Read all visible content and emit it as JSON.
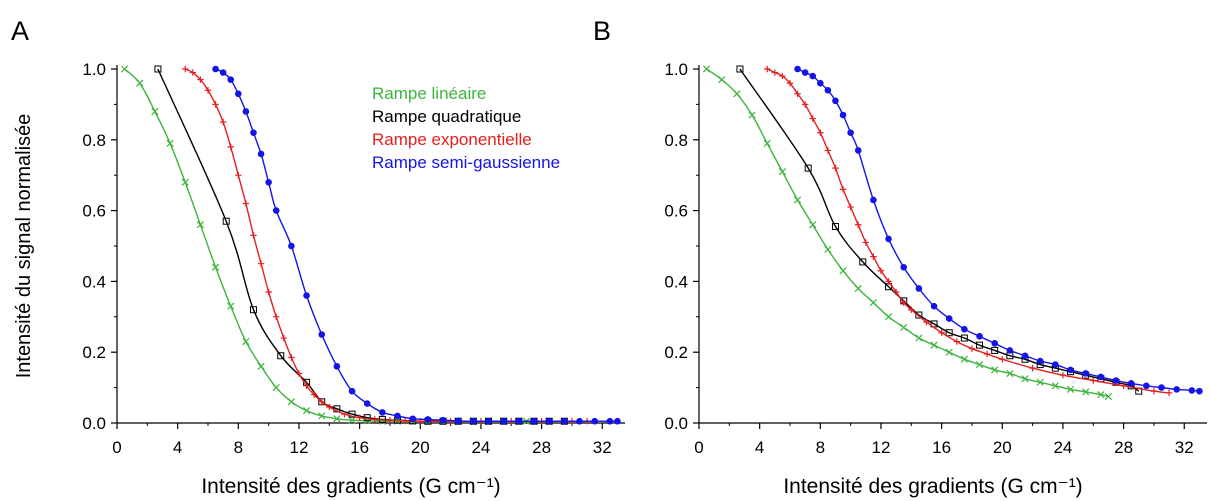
{
  "chart_data": [
    {
      "panel_label": "A",
      "type": "line",
      "xlabel": "Intensité des gradients (G cm⁻¹)",
      "ylabel": "Intensité du signal normalisée",
      "xlim": [
        0,
        33.5
      ],
      "ylim": [
        0,
        1.0
      ],
      "x_ticks": [
        0,
        4,
        8,
        12,
        16,
        20,
        24,
        28,
        32
      ],
      "x_tick_labels": [
        "0",
        "4",
        "8",
        "12",
        "16",
        "20",
        "24",
        "28",
        "32"
      ],
      "y_ticks": [
        0,
        0.2,
        0.4,
        0.6,
        0.8,
        1.0
      ],
      "y_tick_labels": [
        "0.0",
        "0.2",
        "0.4",
        "0.6",
        "0.8",
        "1.0"
      ],
      "grid": false,
      "legend_position": "top-center",
      "series": [
        {
          "name": "Rampe linéaire",
          "color": "#3cb43c",
          "marker": "x",
          "x": [
            0.5,
            1.5,
            2.5,
            3.5,
            4.5,
            5.5,
            6.5,
            7.5,
            8.5,
            9.5,
            10.5,
            11.5,
            12.5,
            13.5,
            14.5,
            15.5,
            16.5,
            17.5,
            18.5,
            19.5,
            20.5,
            21.5,
            22.5,
            23.5,
            24.5,
            25.5,
            26.5,
            27.0
          ],
          "y": [
            1.0,
            0.96,
            0.88,
            0.79,
            0.68,
            0.56,
            0.44,
            0.33,
            0.23,
            0.16,
            0.1,
            0.06,
            0.035,
            0.02,
            0.012,
            0.008,
            0.006,
            0.005,
            0.005,
            0.005,
            0.005,
            0.005,
            0.005,
            0.005,
            0.005,
            0.005,
            0.005,
            0.005
          ]
        },
        {
          "name": "Rampe quadratique",
          "color": "#000000",
          "marker": "square",
          "x": [
            2.7,
            7.2,
            9.0,
            10.8,
            12.5,
            13.5,
            14.5,
            15.5,
            16.5,
            17.5,
            18.5,
            19.5,
            20.5,
            21.5,
            22.5,
            23.5,
            24.5,
            25.5,
            26.5,
            27.5,
            28.5,
            29.5
          ],
          "y": [
            1.0,
            0.57,
            0.32,
            0.19,
            0.115,
            0.06,
            0.04,
            0.025,
            0.015,
            0.01,
            0.008,
            0.006,
            0.005,
            0.005,
            0.005,
            0.005,
            0.005,
            0.005,
            0.005,
            0.005,
            0.005,
            0.005
          ]
        },
        {
          "name": "Rampe exponentielle",
          "color": "#e61e1e",
          "marker": "plus",
          "x": [
            4.5,
            5.0,
            5.5,
            6.0,
            6.5,
            7.0,
            7.5,
            8.0,
            8.5,
            9.0,
            9.5,
            10.0,
            10.5,
            11.0,
            11.5,
            12.0,
            12.5,
            13.0,
            13.5,
            14.0,
            15.0,
            16.0,
            17.0,
            18.0,
            19.0,
            20.0,
            22.0,
            24.0,
            26.0,
            28.0,
            30.0,
            31.0
          ],
          "y": [
            1.0,
            0.99,
            0.97,
            0.94,
            0.9,
            0.85,
            0.78,
            0.7,
            0.62,
            0.53,
            0.45,
            0.37,
            0.3,
            0.24,
            0.185,
            0.14,
            0.105,
            0.08,
            0.06,
            0.045,
            0.025,
            0.015,
            0.01,
            0.008,
            0.006,
            0.005,
            0.005,
            0.005,
            0.005,
            0.005,
            0.005,
            0.005
          ]
        },
        {
          "name": "Rampe semi-gaussienne",
          "color": "#1414e6",
          "marker": "circle",
          "x": [
            6.5,
            7.0,
            7.5,
            8.0,
            8.5,
            9.0,
            9.5,
            10.0,
            10.5,
            11.5,
            12.5,
            13.5,
            14.5,
            15.5,
            16.5,
            17.5,
            18.5,
            19.5,
            20.5,
            21.5,
            22.5,
            23.5,
            24.5,
            25.5,
            26.5,
            27.5,
            28.5,
            29.5,
            30.5,
            31.5,
            32.5,
            33.0
          ],
          "y": [
            1.0,
            0.99,
            0.97,
            0.93,
            0.88,
            0.82,
            0.76,
            0.68,
            0.6,
            0.5,
            0.36,
            0.25,
            0.16,
            0.09,
            0.055,
            0.03,
            0.02,
            0.012,
            0.01,
            0.008,
            0.006,
            0.005,
            0.005,
            0.005,
            0.005,
            0.005,
            0.005,
            0.005,
            0.005,
            0.005,
            0.005,
            0.005
          ]
        }
      ]
    },
    {
      "panel_label": "B",
      "type": "line",
      "xlabel": "Intensité des gradients (G cm⁻¹)",
      "ylabel": "",
      "xlim": [
        0,
        33.5
      ],
      "ylim": [
        0,
        1.0
      ],
      "x_ticks": [
        0,
        4,
        8,
        12,
        16,
        20,
        24,
        28,
        32
      ],
      "x_tick_labels": [
        "0",
        "4",
        "8",
        "12",
        "16",
        "20",
        "24",
        "28",
        "32"
      ],
      "y_ticks": [
        0,
        0.2,
        0.4,
        0.6,
        0.8,
        1.0
      ],
      "y_tick_labels": [
        "0.0",
        "0.2",
        "0.4",
        "0.6",
        "0.8",
        "1.0"
      ],
      "grid": false,
      "series": [
        {
          "name": "Rampe linéaire",
          "color": "#3cb43c",
          "marker": "x",
          "x": [
            0.5,
            1.5,
            2.5,
            3.5,
            4.5,
            5.5,
            6.5,
            7.5,
            8.5,
            9.5,
            10.5,
            11.5,
            12.5,
            13.5,
            14.5,
            15.5,
            16.5,
            17.5,
            18.5,
            19.5,
            20.5,
            21.5,
            22.5,
            23.5,
            24.5,
            25.5,
            26.5,
            27.0
          ],
          "y": [
            1.0,
            0.97,
            0.93,
            0.87,
            0.79,
            0.71,
            0.63,
            0.56,
            0.49,
            0.43,
            0.38,
            0.34,
            0.3,
            0.27,
            0.24,
            0.22,
            0.2,
            0.18,
            0.165,
            0.15,
            0.14,
            0.125,
            0.115,
            0.105,
            0.095,
            0.088,
            0.08,
            0.075
          ]
        },
        {
          "name": "Rampe quadratique",
          "color": "#000000",
          "marker": "square",
          "x": [
            2.7,
            7.2,
            9.0,
            10.8,
            12.5,
            13.5,
            14.5,
            15.5,
            16.5,
            17.5,
            18.5,
            19.5,
            20.5,
            21.5,
            22.5,
            23.5,
            24.5,
            25.5,
            26.5,
            27.5,
            28.5,
            29.0
          ],
          "y": [
            1.0,
            0.72,
            0.555,
            0.455,
            0.385,
            0.345,
            0.305,
            0.28,
            0.255,
            0.24,
            0.22,
            0.205,
            0.19,
            0.18,
            0.165,
            0.155,
            0.145,
            0.135,
            0.125,
            0.115,
            0.105,
            0.09
          ]
        },
        {
          "name": "Rampe exponentielle",
          "color": "#e61e1e",
          "marker": "plus",
          "x": [
            4.5,
            5.0,
            5.5,
            6.0,
            6.5,
            7.0,
            7.5,
            8.0,
            8.5,
            9.0,
            9.5,
            10.0,
            10.5,
            11.0,
            11.5,
            12.0,
            12.5,
            13.0,
            13.5,
            14.0,
            15.0,
            16.0,
            17.0,
            18.0,
            19.0,
            20.0,
            22.0,
            24.0,
            26.0,
            28.0,
            30.0,
            31.0
          ],
          "y": [
            1.0,
            0.99,
            0.98,
            0.96,
            0.93,
            0.9,
            0.86,
            0.82,
            0.77,
            0.72,
            0.66,
            0.61,
            0.56,
            0.51,
            0.47,
            0.43,
            0.4,
            0.37,
            0.34,
            0.32,
            0.285,
            0.255,
            0.23,
            0.21,
            0.195,
            0.18,
            0.155,
            0.135,
            0.12,
            0.105,
            0.09,
            0.085
          ]
        },
        {
          "name": "Rampe semi-gaussienne",
          "color": "#1414e6",
          "marker": "circle",
          "x": [
            6.5,
            7.0,
            7.5,
            8.0,
            8.5,
            9.0,
            9.5,
            10.0,
            10.5,
            11.5,
            12.5,
            13.5,
            14.5,
            15.5,
            16.5,
            17.5,
            18.5,
            19.5,
            20.5,
            21.5,
            22.5,
            23.5,
            24.5,
            25.5,
            26.5,
            27.5,
            28.5,
            29.5,
            30.5,
            31.5,
            32.5,
            33.0
          ],
          "y": [
            1.0,
            0.99,
            0.98,
            0.96,
            0.94,
            0.91,
            0.87,
            0.82,
            0.77,
            0.63,
            0.52,
            0.44,
            0.38,
            0.33,
            0.295,
            0.265,
            0.245,
            0.225,
            0.205,
            0.19,
            0.175,
            0.165,
            0.15,
            0.14,
            0.13,
            0.12,
            0.112,
            0.105,
            0.1,
            0.095,
            0.092,
            0.09
          ]
        }
      ]
    }
  ]
}
